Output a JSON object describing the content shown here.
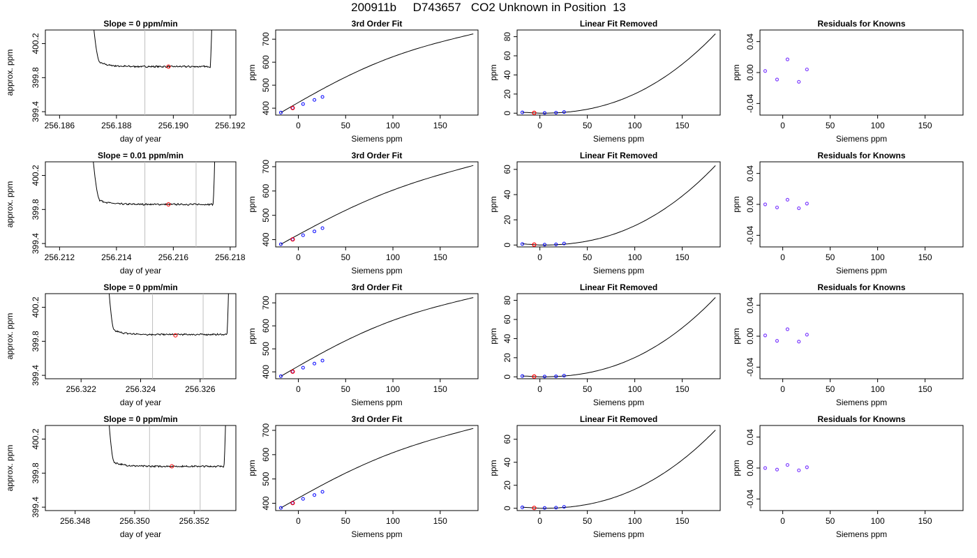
{
  "title": "200911b     D743657   CO2 Unknown in Position  13",
  "colors": {
    "line": "#000000",
    "known_marker": "#0000ff",
    "unknown_marker": "#ff0000",
    "residual_marker": "#7f3fff",
    "vertical_guides": "#bebebe"
  },
  "chart_data": [
    {
      "type": "line",
      "title": "Slope =  0  ppm/min",
      "xlabel": "day of year",
      "ylabel": "approx. ppm",
      "xlim": [
        256.1855,
        256.1922
      ],
      "ylim": [
        399.36,
        400.36
      ],
      "xticks": [
        256.186,
        256.188,
        256.19,
        256.192
      ],
      "xticklabels": [
        "256.186",
        "256.188",
        "256.190",
        "256.192"
      ],
      "yticks": [
        399.4,
        399.8,
        400.2
      ],
      "yticklabels": [
        "399.4",
        "399.8",
        "400.2"
      ],
      "vlines": [
        256.189,
        256.1907
      ],
      "trace": {
        "start": 256.187,
        "end": 256.1914,
        "plateau_start": 256.1874,
        "plateau_end": 256.1913,
        "level": 399.93,
        "noise": 0.008
      },
      "marker": {
        "x": 256.18983,
        "y": 399.93,
        "color": "red"
      }
    },
    {
      "type": "line",
      "title": "3rd Order Fit",
      "xlabel": "Siemens ppm",
      "ylabel": "ppm",
      "xlim": [
        -24,
        190
      ],
      "ylim": [
        370,
        740
      ],
      "xticks": [
        0,
        50,
        100,
        150
      ],
      "xticklabels": [
        "0",
        "50",
        "100",
        "150"
      ],
      "yticks": [
        400,
        500,
        600,
        700
      ],
      "yticklabels": [
        "400",
        "500",
        "600",
        "700"
      ],
      "curve": {
        "x0": -18.5,
        "x1": 185,
        "y0": 381,
        "y1": 723,
        "curvature": 45
      },
      "known_points": [
        [
          -18.5,
          381
        ],
        [
          -6,
          401
        ],
        [
          5,
          418
        ],
        [
          17,
          436
        ],
        [
          25.5,
          449
        ]
      ],
      "unknown_point": [
        -6,
        401
      ]
    },
    {
      "type": "line",
      "title": "Linear Fit Removed",
      "xlabel": "Siemens ppm",
      "ylabel": "ppm",
      "xlim": [
        -24,
        190
      ],
      "ylim": [
        -2,
        87
      ],
      "xticks": [
        0,
        50,
        100,
        150
      ],
      "xticklabels": [
        "0",
        "50",
        "100",
        "150"
      ],
      "yticks": [
        0,
        20,
        40,
        60,
        80
      ],
      "yticklabels": [
        "0",
        "20",
        "40",
        "60",
        "80"
      ],
      "curve": {
        "x0": -18.5,
        "x1": 185,
        "ymax": 83,
        "pow": 2.3
      },
      "known_points": [
        [
          -18.5,
          0.8
        ],
        [
          5,
          0.3
        ],
        [
          17,
          0.5
        ],
        [
          25.5,
          1.2
        ]
      ],
      "unknown_point": [
        -6,
        0.3
      ]
    },
    {
      "type": "scatter",
      "title": "Residuals for Knowns",
      "xlabel": "Siemens ppm",
      "ylabel": "ppm",
      "xlim": [
        -24,
        190
      ],
      "ylim": [
        -0.055,
        0.055
      ],
      "xticks": [
        0,
        50,
        100,
        150
      ],
      "xticklabels": [
        "0",
        "50",
        "100",
        "150"
      ],
      "yticks": [
        -0.04,
        0.0,
        0.04
      ],
      "yticklabels": [
        "-0.04",
        "0.00",
        "0.04"
      ],
      "points": [
        [
          -18.5,
          0.002
        ],
        [
          -6,
          -0.009
        ],
        [
          5,
          0.017
        ],
        [
          17,
          -0.012
        ],
        [
          25.5,
          0.004
        ]
      ]
    },
    {
      "type": "line",
      "title": "Slope =  0.01  ppm/min",
      "xlabel": "day of year",
      "ylabel": "approx. ppm",
      "xlim": [
        256.2115,
        256.2182
      ],
      "ylim": [
        399.36,
        400.36
      ],
      "xticks": [
        256.212,
        256.214,
        256.216,
        256.218
      ],
      "xticklabels": [
        "256.212",
        "256.214",
        "256.216",
        "256.218"
      ],
      "yticks": [
        399.4,
        399.8,
        400.2
      ],
      "yticklabels": [
        "399.4",
        "399.8",
        "400.2"
      ],
      "vlines": [
        256.215,
        256.2168
      ],
      "trace": {
        "start": 256.213,
        "end": 256.2175,
        "plateau_start": 256.2134,
        "plateau_end": 256.2174,
        "level": 399.86,
        "noise": 0.008
      },
      "marker": {
        "x": 256.21583,
        "y": 399.86,
        "color": "red"
      }
    },
    {
      "type": "line",
      "title": "3rd Order Fit",
      "xlabel": "Siemens ppm",
      "ylabel": "ppm",
      "xlim": [
        -24,
        190
      ],
      "ylim": [
        370,
        720
      ],
      "xticks": [
        0,
        50,
        100,
        150
      ],
      "xticklabels": [
        "0",
        "50",
        "100",
        "150"
      ],
      "yticks": [
        400,
        500,
        600,
        700
      ],
      "yticklabels": [
        "400",
        "500",
        "600",
        "700"
      ],
      "curve": {
        "x0": -18.5,
        "x1": 185,
        "y0": 381,
        "y1": 705,
        "curvature": 35
      },
      "known_points": [
        [
          -18.5,
          381
        ],
        [
          -6,
          401
        ],
        [
          5,
          418
        ],
        [
          17,
          434
        ],
        [
          25.5,
          447
        ]
      ],
      "unknown_point": [
        -6,
        401
      ]
    },
    {
      "type": "line",
      "title": "Linear Fit Removed",
      "xlabel": "Siemens ppm",
      "ylabel": "ppm",
      "xlim": [
        -24,
        190
      ],
      "ylim": [
        -1.5,
        66
      ],
      "xticks": [
        0,
        50,
        100,
        150
      ],
      "xticklabels": [
        "0",
        "50",
        "100",
        "150"
      ],
      "yticks": [
        0,
        20,
        40,
        60
      ],
      "yticklabels": [
        "0",
        "20",
        "40",
        "60"
      ],
      "curve": {
        "x0": -18.5,
        "x1": 185,
        "ymax": 63,
        "pow": 2.3
      },
      "known_points": [
        [
          -18.5,
          0.8
        ],
        [
          5,
          0.3
        ],
        [
          17,
          0.5
        ],
        [
          25.5,
          1.2
        ]
      ],
      "unknown_point": [
        -6,
        0.3
      ]
    },
    {
      "type": "scatter",
      "title": "Residuals for Knowns",
      "xlabel": "Siemens ppm",
      "ylabel": "ppm",
      "xlim": [
        -24,
        190
      ],
      "ylim": [
        -0.055,
        0.055
      ],
      "xticks": [
        0,
        50,
        100,
        150
      ],
      "xticklabels": [
        "0",
        "50",
        "100",
        "150"
      ],
      "yticks": [
        -0.04,
        0.0,
        0.04
      ],
      "yticklabels": [
        "-0.04",
        "0.00",
        "0.04"
      ],
      "points": [
        [
          -18.5,
          0.0
        ],
        [
          -6,
          -0.004
        ],
        [
          5,
          0.006
        ],
        [
          17,
          -0.005
        ],
        [
          25.5,
          0.001
        ]
      ]
    },
    {
      "type": "line",
      "title": "Slope =  0  ppm/min",
      "xlabel": "day of year",
      "ylabel": "approx. ppm",
      "xlim": [
        256.3208,
        256.3272
      ],
      "ylim": [
        399.36,
        400.36
      ],
      "xticks": [
        256.322,
        256.324,
        256.326
      ],
      "xticklabels": [
        "256.322",
        "256.324",
        "256.326"
      ],
      "yticks": [
        399.4,
        399.8,
        400.2
      ],
      "yticklabels": [
        "399.4",
        "399.8",
        "400.2"
      ],
      "vlines": [
        256.3244,
        256.3261
      ],
      "trace": {
        "start": 256.3228,
        "end": 256.327,
        "plateau_start": 256.3231,
        "plateau_end": 256.3269,
        "level": 399.88,
        "noise": 0.008
      },
      "marker": {
        "x": 256.32517,
        "y": 399.87,
        "color": "red"
      }
    },
    {
      "type": "line",
      "title": "3rd Order Fit",
      "xlabel": "Siemens ppm",
      "ylabel": "ppm",
      "xlim": [
        -24,
        190
      ],
      "ylim": [
        370,
        740
      ],
      "xticks": [
        0,
        50,
        100,
        150
      ],
      "xticklabels": [
        "0",
        "50",
        "100",
        "150"
      ],
      "yticks": [
        400,
        500,
        600,
        700
      ],
      "yticklabels": [
        "400",
        "500",
        "600",
        "700"
      ],
      "curve": {
        "x0": -18.5,
        "x1": 185,
        "y0": 381,
        "y1": 723,
        "curvature": 45
      },
      "known_points": [
        [
          -18.5,
          381
        ],
        [
          -6,
          401
        ],
        [
          5,
          418
        ],
        [
          17,
          436
        ],
        [
          25.5,
          449
        ]
      ],
      "unknown_point": [
        -6,
        401
      ]
    },
    {
      "type": "line",
      "title": "Linear Fit Removed",
      "xlabel": "Siemens ppm",
      "ylabel": "ppm",
      "xlim": [
        -24,
        190
      ],
      "ylim": [
        -2,
        87
      ],
      "xticks": [
        0,
        50,
        100,
        150
      ],
      "xticklabels": [
        "0",
        "50",
        "100",
        "150"
      ],
      "yticks": [
        0,
        20,
        40,
        60,
        80
      ],
      "yticklabels": [
        "0",
        "20",
        "40",
        "60",
        "80"
      ],
      "curve": {
        "x0": -18.5,
        "x1": 185,
        "ymax": 83,
        "pow": 2.3
      },
      "known_points": [
        [
          -18.5,
          0.8
        ],
        [
          5,
          0.3
        ],
        [
          17,
          0.5
        ],
        [
          25.5,
          1.2
        ]
      ],
      "unknown_point": [
        -6,
        0.3
      ]
    },
    {
      "type": "scatter",
      "title": "Residuals for Knowns",
      "xlabel": "Siemens ppm",
      "ylabel": "ppm",
      "xlim": [
        -24,
        190
      ],
      "ylim": [
        -0.055,
        0.055
      ],
      "xticks": [
        0,
        50,
        100,
        150
      ],
      "xticklabels": [
        "0",
        "50",
        "100",
        "150"
      ],
      "yticks": [
        -0.04,
        0.0,
        0.04
      ],
      "yticklabels": [
        "-0.04",
        "0.00",
        "0.04"
      ],
      "points": [
        [
          -18.5,
          0.001
        ],
        [
          -6,
          -0.006
        ],
        [
          5,
          0.009
        ],
        [
          17,
          -0.007
        ],
        [
          25.5,
          0.002
        ]
      ]
    },
    {
      "type": "line",
      "title": "Slope =  0  ppm/min",
      "xlabel": "day of year",
      "ylabel": "approx. ppm",
      "xlim": [
        256.347,
        256.3534
      ],
      "ylim": [
        399.36,
        400.36
      ],
      "xticks": [
        256.348,
        256.35,
        256.352
      ],
      "xticklabels": [
        "256.348",
        "256.350",
        "256.352"
      ],
      "yticks": [
        399.4,
        399.8,
        400.2
      ],
      "yticklabels": [
        "399.4",
        "399.8",
        "400.2"
      ],
      "vlines": [
        256.3505,
        256.3522
      ],
      "trace": {
        "start": 256.349,
        "end": 256.3531,
        "plateau_start": 256.3493,
        "plateau_end": 256.353,
        "level": 399.88,
        "noise": 0.008
      },
      "marker": {
        "x": 256.35125,
        "y": 399.88,
        "color": "red"
      }
    },
    {
      "type": "line",
      "title": "3rd Order Fit",
      "xlabel": "Siemens ppm",
      "ylabel": "ppm",
      "xlim": [
        -24,
        190
      ],
      "ylim": [
        370,
        720
      ],
      "xticks": [
        0,
        50,
        100,
        150
      ],
      "xticklabels": [
        "0",
        "50",
        "100",
        "150"
      ],
      "yticks": [
        400,
        500,
        600,
        700
      ],
      "yticklabels": [
        "400",
        "500",
        "600",
        "700"
      ],
      "curve": {
        "x0": -18.5,
        "x1": 185,
        "y0": 381,
        "y1": 708,
        "curvature": 38
      },
      "known_points": [
        [
          -18.5,
          381
        ],
        [
          -6,
          401
        ],
        [
          5,
          418
        ],
        [
          17,
          434
        ],
        [
          25.5,
          447
        ]
      ],
      "unknown_point": [
        -6,
        401
      ]
    },
    {
      "type": "line",
      "title": "Linear Fit Removed",
      "xlabel": "Siemens ppm",
      "ylabel": "ppm",
      "xlim": [
        -24,
        190
      ],
      "ylim": [
        -2,
        72
      ],
      "xticks": [
        0,
        50,
        100,
        150
      ],
      "xticklabels": [
        "0",
        "50",
        "100",
        "150"
      ],
      "yticks": [
        0,
        20,
        40,
        60
      ],
      "yticklabels": [
        "0",
        "20",
        "40",
        "60"
      ],
      "curve": {
        "x0": -18.5,
        "x1": 185,
        "ymax": 68,
        "pow": 2.3
      },
      "known_points": [
        [
          -18.5,
          0.8
        ],
        [
          5,
          0.3
        ],
        [
          17,
          0.5
        ],
        [
          25.5,
          1.2
        ]
      ],
      "unknown_point": [
        -6,
        0.3
      ]
    },
    {
      "type": "scatter",
      "title": "Residuals for Knowns",
      "xlabel": "Siemens ppm",
      "ylabel": "ppm",
      "xlim": [
        -24,
        190
      ],
      "ylim": [
        -0.055,
        0.055
      ],
      "xticks": [
        0,
        50,
        100,
        150
      ],
      "xticklabels": [
        "0",
        "50",
        "100",
        "150"
      ],
      "yticks": [
        -0.04,
        0.0,
        0.04
      ],
      "yticklabels": [
        "-0.04",
        "0.00",
        "0.04"
      ],
      "points": [
        [
          -18.5,
          0.0
        ],
        [
          -6,
          -0.002
        ],
        [
          5,
          0.004
        ],
        [
          17,
          -0.003
        ],
        [
          25.5,
          0.001
        ]
      ]
    }
  ]
}
